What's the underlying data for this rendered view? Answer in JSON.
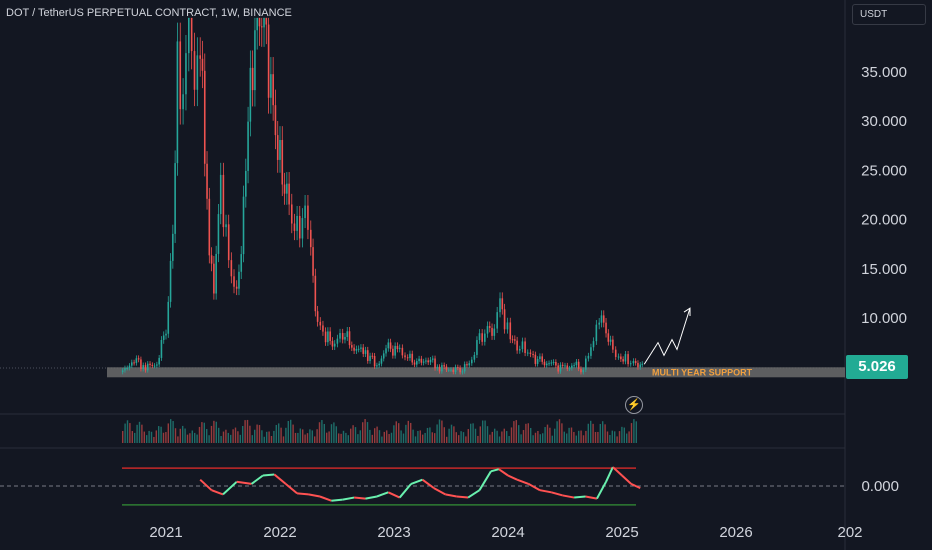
{
  "header": {
    "title": "DOT / TetherUS PERPETUAL CONTRACT, 1W, BINANCE",
    "currency": "USDT"
  },
  "last_price": "5.026",
  "icons": {
    "flash": "lightning-icon"
  },
  "colors": {
    "background": "#131722",
    "up": "#26a69a",
    "down": "#ef5350",
    "support_band": "#6b6b6b",
    "support_label": "#f0a040",
    "price_label_bg": "#22ab94",
    "projection": "#ffffff"
  },
  "chart_data": [
    {
      "type": "line",
      "title": "DOT / TetherUS PERPETUAL CONTRACT, 1W, BINANCE",
      "y_axis_ticks": [
        "35.000",
        "30.000",
        "25.000",
        "20.000",
        "15.000",
        "10.000"
      ],
      "x_axis_ticks": [
        "2021",
        "2022",
        "2023",
        "2024",
        "2025",
        "2026",
        "202"
      ],
      "ylim": [
        3,
        40
      ],
      "last_value": 5.026,
      "annotations": [
        "MULTI YEAR SUPPORT"
      ],
      "support_zone": [
        4.6,
        5.6
      ],
      "x": [
        "2020.62",
        "2020.72",
        "2020.82",
        "2020.92",
        "2021.00",
        "2021.06",
        "2021.10",
        "2021.15",
        "2021.20",
        "2021.25",
        "2021.30",
        "2021.34",
        "2021.38",
        "2021.42",
        "2021.48",
        "2021.55",
        "2021.62",
        "2021.68",
        "2021.72",
        "2021.78",
        "2021.84",
        "2021.90",
        "2021.96",
        "2022.02",
        "2022.08",
        "2022.15",
        "2022.22",
        "2022.27",
        "2022.33",
        "2022.40",
        "2022.48",
        "2022.55",
        "2022.65",
        "2022.75",
        "2022.85",
        "2022.95",
        "2023.05",
        "2023.12",
        "2023.20",
        "2023.30",
        "2023.40",
        "2023.50",
        "2023.58",
        "2023.66",
        "2023.75",
        "2023.82",
        "2023.88",
        "2023.93",
        "2023.97",
        "2024.02",
        "2024.08",
        "2024.15",
        "2024.22",
        "2024.30",
        "2024.40",
        "2024.50",
        "2024.58",
        "2024.66",
        "2024.75",
        "2024.80",
        "2024.86",
        "2024.92",
        "2024.97",
        "2025.03",
        "2025.10",
        "2025.16"
      ],
      "series": [
        {
          "values": [
            4.5,
            5.8,
            5.0,
            5.4,
            9.0,
            18.0,
            36.0,
            32.0,
            40.0,
            33.0,
            38.0,
            26.0,
            18.0,
            13.0,
            24.0,
            16.0,
            12.0,
            21.0,
            30.0,
            38.0,
            42.0,
            35.0,
            29.0,
            25.0,
            21.0,
            19.0,
            21.0,
            16.0,
            9.5,
            8.0,
            7.5,
            8.5,
            7.0,
            6.5,
            5.2,
            7.0,
            6.5,
            6.0,
            5.5,
            5.8,
            5.0,
            4.8,
            4.7,
            5.3,
            7.8,
            9.0,
            8.4,
            11.8,
            9.5,
            8.0,
            7.2,
            6.8,
            6.0,
            5.5,
            5.2,
            4.8,
            5.3,
            4.7,
            8.0,
            10.5,
            8.5,
            7.0,
            6.0,
            5.8,
            5.5,
            5.026
          ]
        }
      ]
    },
    {
      "type": "bar",
      "title": "",
      "note": "volume pane",
      "series": []
    },
    {
      "type": "line",
      "title": "",
      "y_axis_ticks": [
        "0.000"
      ],
      "x_axis_ticks": [
        "2021",
        "2022",
        "2023",
        "2024",
        "2025",
        "2026",
        "202"
      ],
      "ylim": [
        -1.2,
        1.2
      ],
      "x": [
        "2021.30",
        "2021.40",
        "2021.50",
        "2021.62",
        "2021.75",
        "2021.85",
        "2021.95",
        "2022.05",
        "2022.15",
        "2022.25",
        "2022.35",
        "2022.45",
        "2022.55",
        "2022.65",
        "2022.75",
        "2022.85",
        "2022.95",
        "2023.05",
        "2023.15",
        "2023.25",
        "2023.35",
        "2023.45",
        "2023.55",
        "2023.65",
        "2023.75",
        "2023.85",
        "2023.92",
        "2024.00",
        "2024.08",
        "2024.18",
        "2024.28",
        "2024.38",
        "2024.48",
        "2024.58",
        "2024.68",
        "2024.78",
        "2024.86",
        "2024.92",
        "2025.00",
        "2025.08",
        "2025.16"
      ],
      "series": [
        {
          "values": [
            0.3,
            -0.2,
            -0.4,
            0.2,
            0.1,
            0.5,
            0.55,
            0.1,
            -0.35,
            -0.4,
            -0.5,
            -0.7,
            -0.65,
            -0.55,
            -0.6,
            -0.5,
            -0.3,
            -0.55,
            0.1,
            0.3,
            -0.1,
            -0.4,
            -0.5,
            -0.55,
            -0.2,
            0.7,
            0.8,
            0.5,
            0.3,
            0.1,
            -0.2,
            -0.3,
            -0.45,
            -0.55,
            -0.5,
            -0.6,
            0.2,
            0.9,
            0.5,
            0.1,
            -0.1
          ]
        }
      ],
      "marker_levels": {
        "upper": 0.85,
        "lower": -0.9
      }
    }
  ]
}
